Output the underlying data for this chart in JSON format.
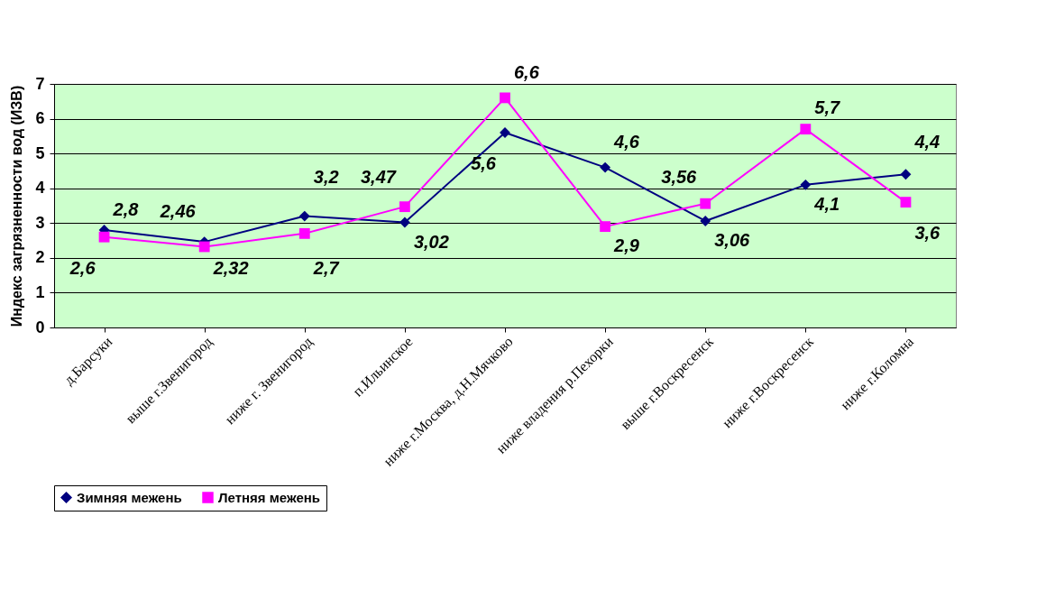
{
  "chart_data": {
    "type": "line",
    "ylabel": "Индекс загрязненности вод (ИЗВ)",
    "categories": [
      "д.Барсуки",
      "выше г.Звенигород",
      "ниже г. Звенигород",
      "п.Ильинское",
      "ниже г.Москва, д.Н.Мячково",
      "ниже владения р.Пехорки",
      "выше г.Воскресенск",
      "ниже г.Воскресенск",
      "ниже г.Коломна"
    ],
    "series": [
      {
        "name": "Зимняя межень",
        "color": "#000080",
        "marker": "diamond",
        "values": [
          2.8,
          2.46,
          3.2,
          3.02,
          5.6,
          4.6,
          3.06,
          4.1,
          4.4
        ],
        "value_labels": [
          "2,8",
          "2,46",
          "3,2",
          "3,02",
          "5,6",
          "4,6",
          "3,06",
          "4,1",
          "4,4"
        ]
      },
      {
        "name": "Летняя межень",
        "color": "#ff00ff",
        "marker": "square",
        "values": [
          2.6,
          2.32,
          2.7,
          3.47,
          6.6,
          2.9,
          3.56,
          5.7,
          3.6
        ],
        "value_labels": [
          "2,6",
          "2,32",
          "2,7",
          "3,47",
          "6,6",
          "2,9",
          "3,56",
          "5,7",
          "3,6"
        ]
      }
    ],
    "ylim": [
      0,
      7
    ],
    "yticks": [
      0,
      1,
      2,
      3,
      4,
      5,
      6,
      7
    ],
    "grid": "y",
    "legend": "bottom"
  }
}
